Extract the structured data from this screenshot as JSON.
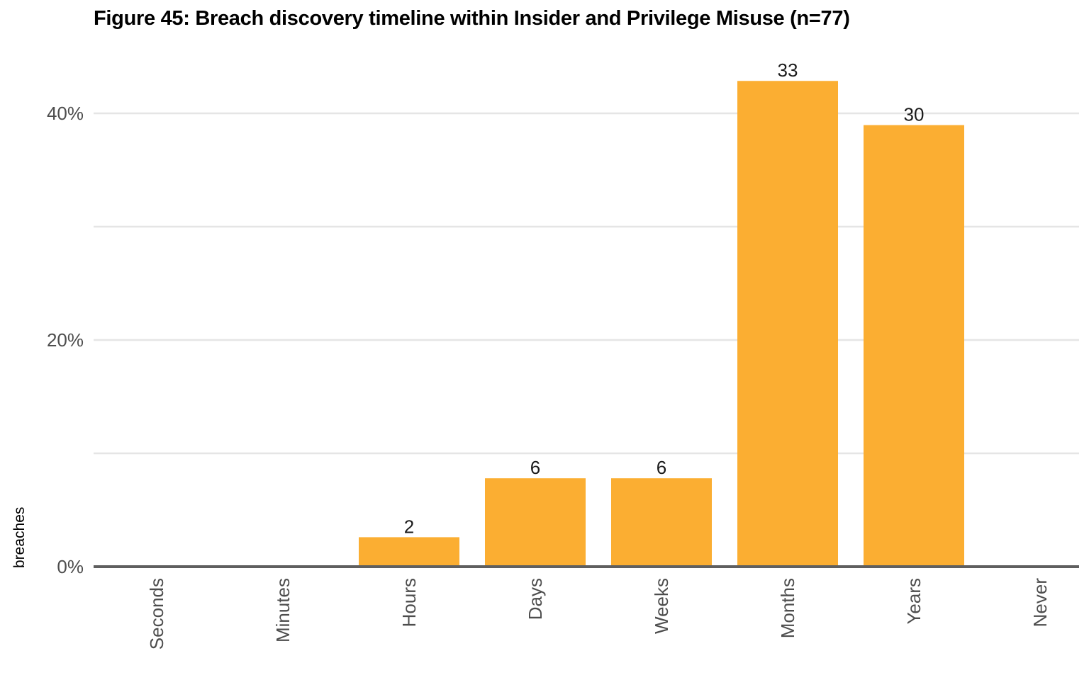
{
  "chart_data": {
    "type": "bar",
    "title": "Figure 45: Breach discovery timeline within Insider and Privilege Misuse (n=77)",
    "xlabel": "",
    "ylabel": "breaches",
    "categories": [
      "Seconds",
      "Minutes",
      "Hours",
      "Days",
      "Weeks",
      "Months",
      "Years",
      "Never"
    ],
    "counts": [
      0,
      0,
      2,
      6,
      6,
      33,
      30,
      0
    ],
    "data_labels": [
      "",
      "",
      "2",
      "6",
      "6",
      "33",
      "30",
      ""
    ],
    "n": 77,
    "values_percent": [
      0,
      0,
      2.6,
      7.8,
      7.8,
      42.86,
      38.96,
      0
    ],
    "ylim": [
      0,
      45
    ],
    "yticks": [
      0,
      20,
      40
    ],
    "ytick_labels": [
      "0%",
      "20%",
      "40%"
    ],
    "minor_gridlines": [
      10,
      30
    ],
    "grid": true,
    "legend": "none",
    "bar_color": "#fbae32"
  }
}
